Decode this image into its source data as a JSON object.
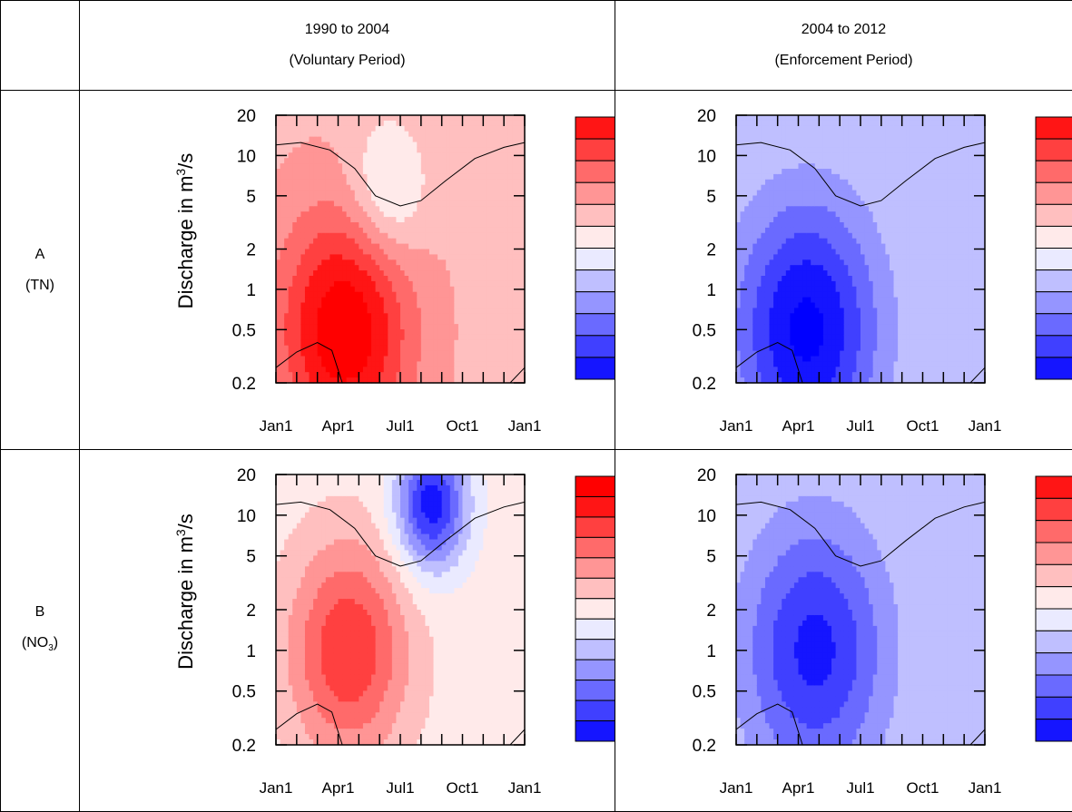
{
  "header": {
    "col1_line1": "1990 to 2004",
    "col1_line2": "(Voluntary Period)",
    "col2_line1": "2004 to 2012",
    "col2_line2": "(Enforcement Period)"
  },
  "rows": [
    {
      "letter": "A",
      "label": "(TN)"
    },
    {
      "letter": "B",
      "label_pre": "(NO",
      "label_sub": "3",
      "label_post": ")"
    }
  ],
  "ylabel_text": "Discharge in m",
  "ylabel_sup": "3",
  "ylabel_end": "/s",
  "colors": {
    "red_max": "#ff0000",
    "blue_max": "#0000ff",
    "neutral": "#ffffff"
  },
  "chart_data": [
    {
      "type": "heatmap",
      "x_ticks": [
        "Jan1",
        "Apr1",
        "Jul1",
        "Oct1",
        "Jan1"
      ],
      "y_ticks": [
        "20",
        "10",
        "5",
        "2",
        "1",
        "0.5",
        "0.2"
      ],
      "y_values": [
        20,
        10,
        5,
        2,
        1,
        0.5,
        0.2
      ],
      "y_scale": "log",
      "colorbar_ticks": [
        "10",
        "5",
        "0",
        "-5",
        "-10"
      ],
      "colorbar_levels": [
        12,
        10,
        8,
        6,
        4,
        2,
        0,
        -2,
        -4,
        -6,
        -8,
        -10,
        -12
      ],
      "features": [
        {
          "month": 3.3,
          "discharge": 0.5,
          "value": 11,
          "spread": 2.2
        },
        {
          "month": 5.4,
          "discharge": 5.5,
          "value": -4,
          "spread": 1.3
        }
      ],
      "baseline": 3.5
    },
    {
      "type": "heatmap",
      "x_ticks": [
        "Jan1",
        "Apr1",
        "Jul1",
        "Oct1",
        "Jan1"
      ],
      "y_ticks": [
        "20",
        "10",
        "5",
        "2",
        "1",
        "0.5",
        "0.2"
      ],
      "y_values": [
        20,
        10,
        5,
        2,
        1,
        0.5,
        0.2
      ],
      "y_scale": "log",
      "colorbar_ticks": [
        "10",
        "5",
        "0",
        "-5",
        "-10"
      ],
      "colorbar_levels": [
        12,
        10,
        8,
        6,
        4,
        2,
        0,
        -2,
        -4,
        -6,
        -8,
        -10,
        -12
      ],
      "features": [
        {
          "month": 3.4,
          "discharge": 0.5,
          "value": -11,
          "spread": 2.4
        }
      ],
      "baseline": -2
    },
    {
      "type": "heatmap",
      "x_ticks": [
        "Jan1",
        "Apr1",
        "Jul1",
        "Oct1",
        "Jan1"
      ],
      "y_ticks": [
        "20",
        "10",
        "5",
        "2",
        "1",
        "0.5",
        "0.2"
      ],
      "y_values": [
        20,
        10,
        5,
        2,
        1,
        0.5,
        0.2
      ],
      "y_scale": "log",
      "colorbar_ticks": [
        "10",
        "5",
        "0",
        "-5",
        "-10"
      ],
      "colorbar_levels": [
        14,
        12,
        10,
        8,
        6,
        4,
        2,
        0,
        -2,
        -4,
        -6,
        -8,
        -10,
        -12
      ],
      "features": [
        {
          "month": 3.5,
          "discharge": 1,
          "value": 9,
          "spread": 2.0
        },
        {
          "month": 7.5,
          "discharge": 12,
          "value": -12,
          "spread": 1.2
        }
      ],
      "baseline": 1
    },
    {
      "type": "heatmap",
      "x_ticks": [
        "Jan1",
        "Apr1",
        "Jul1",
        "Oct1",
        "Jan1"
      ],
      "y_ticks": [
        "20",
        "10",
        "5",
        "2",
        "1",
        "0.5",
        "0.2"
      ],
      "y_values": [
        20,
        10,
        5,
        2,
        1,
        0.5,
        0.2
      ],
      "y_scale": "log",
      "colorbar_ticks": [
        "10",
        "5",
        "0",
        "-5",
        "-10"
      ],
      "colorbar_levels": [
        12,
        10,
        8,
        6,
        4,
        2,
        0,
        -2,
        -4,
        -6,
        -8,
        -10,
        -12
      ],
      "features": [
        {
          "month": 3.8,
          "discharge": 1,
          "value": -9,
          "spread": 2.4
        }
      ],
      "baseline": -2
    }
  ]
}
